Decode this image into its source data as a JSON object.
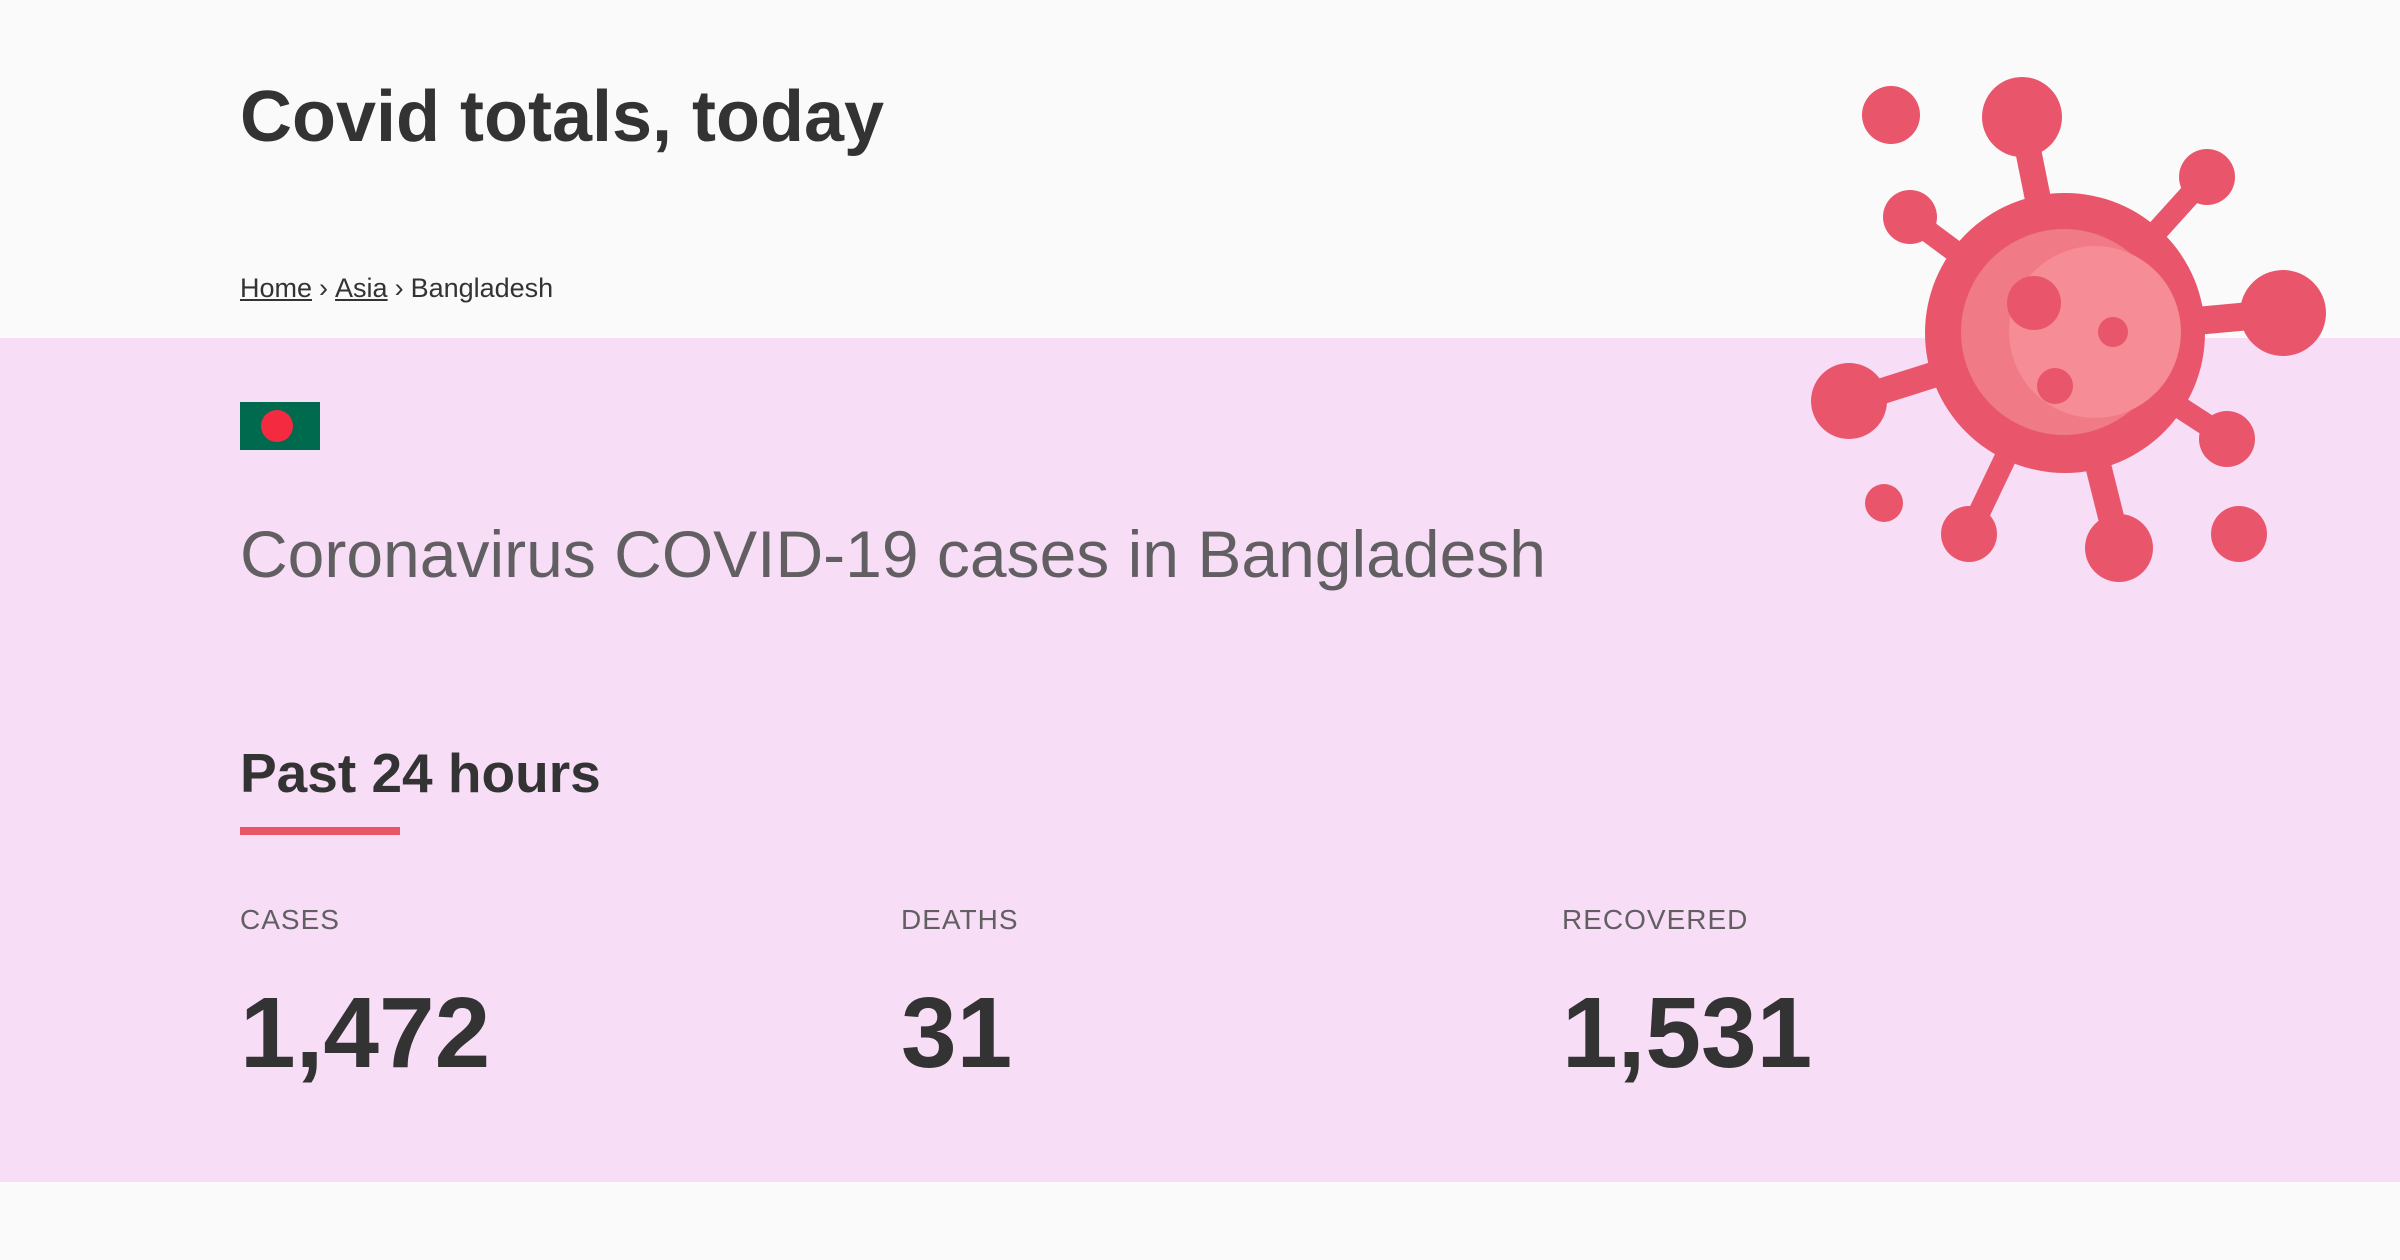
{
  "header": {
    "title": "Covid totals, today"
  },
  "breadcrumb": {
    "items": [
      {
        "label": "Home"
      },
      {
        "label": "Asia"
      },
      {
        "label": "Bangladesh"
      }
    ],
    "separator": "›"
  },
  "country": {
    "flag_icon": "bangladesh-flag-icon",
    "heading": "Coronavirus COVID-19 cases in Bangladesh"
  },
  "period": {
    "heading": "Past 24 hours"
  },
  "stats": {
    "cases": {
      "label": "CASES",
      "value": "1,472"
    },
    "deaths": {
      "label": "DEATHS",
      "value": "31"
    },
    "recovered": {
      "label": "RECOVERED",
      "value": "1,531"
    }
  },
  "colors": {
    "background": "#fafafa",
    "panel": "#f8ddf6",
    "accent": "#e95666",
    "virus": "#e9566b",
    "virus_highlight": "#f58c96",
    "flag_green": "#006a4e",
    "flag_red": "#f42a41"
  },
  "decoration": {
    "illustration_icon": "coronavirus-icon"
  }
}
